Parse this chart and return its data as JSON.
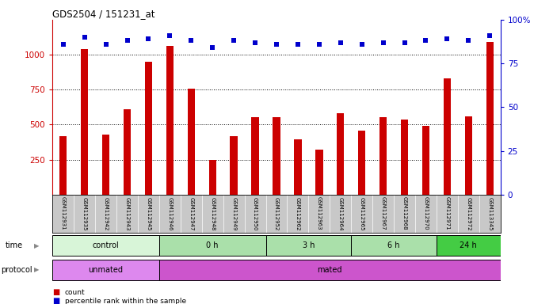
{
  "title": "GDS2504 / 151231_at",
  "samples": [
    "GSM112931",
    "GSM112935",
    "GSM112942",
    "GSM112943",
    "GSM112945",
    "GSM112946",
    "GSM112947",
    "GSM112948",
    "GSM112949",
    "GSM112950",
    "GSM112952",
    "GSM112962",
    "GSM112963",
    "GSM112964",
    "GSM112965",
    "GSM112967",
    "GSM112968",
    "GSM112970",
    "GSM112971",
    "GSM112972",
    "GSM113345"
  ],
  "counts": [
    420,
    1040,
    430,
    610,
    950,
    1065,
    760,
    250,
    420,
    555,
    555,
    395,
    320,
    580,
    460,
    555,
    535,
    490,
    830,
    560,
    1090
  ],
  "percentile": [
    86,
    90,
    86,
    88,
    89,
    91,
    88,
    84,
    88,
    87,
    86,
    86,
    86,
    87,
    86,
    87,
    87,
    88,
    89,
    88,
    91
  ],
  "bar_color": "#cc0000",
  "dot_color": "#0000cc",
  "ylim_left": [
    0,
    1250
  ],
  "ylim_right": [
    0,
    100
  ],
  "yticks_left": [
    250,
    500,
    750,
    1000
  ],
  "yticks_right": [
    0,
    25,
    50,
    75,
    100
  ],
  "grid_lines": [
    250,
    500,
    750,
    1000
  ],
  "time_groups": [
    {
      "label": "control",
      "start": 0,
      "end": 5,
      "color": "#d8f5d8"
    },
    {
      "label": "0 h",
      "start": 5,
      "end": 10,
      "color": "#aae0aa"
    },
    {
      "label": "3 h",
      "start": 10,
      "end": 14,
      "color": "#aae0aa"
    },
    {
      "label": "6 h",
      "start": 14,
      "end": 18,
      "color": "#aae0aa"
    },
    {
      "label": "24 h",
      "start": 18,
      "end": 21,
      "color": "#44cc44"
    }
  ],
  "protocol_groups": [
    {
      "label": "unmated",
      "start": 0,
      "end": 5,
      "color": "#dd88ee"
    },
    {
      "label": "mated",
      "start": 5,
      "end": 21,
      "color": "#cc55cc"
    }
  ],
  "bg_color": "#ffffff",
  "label_area_color": "#c8c8c8"
}
